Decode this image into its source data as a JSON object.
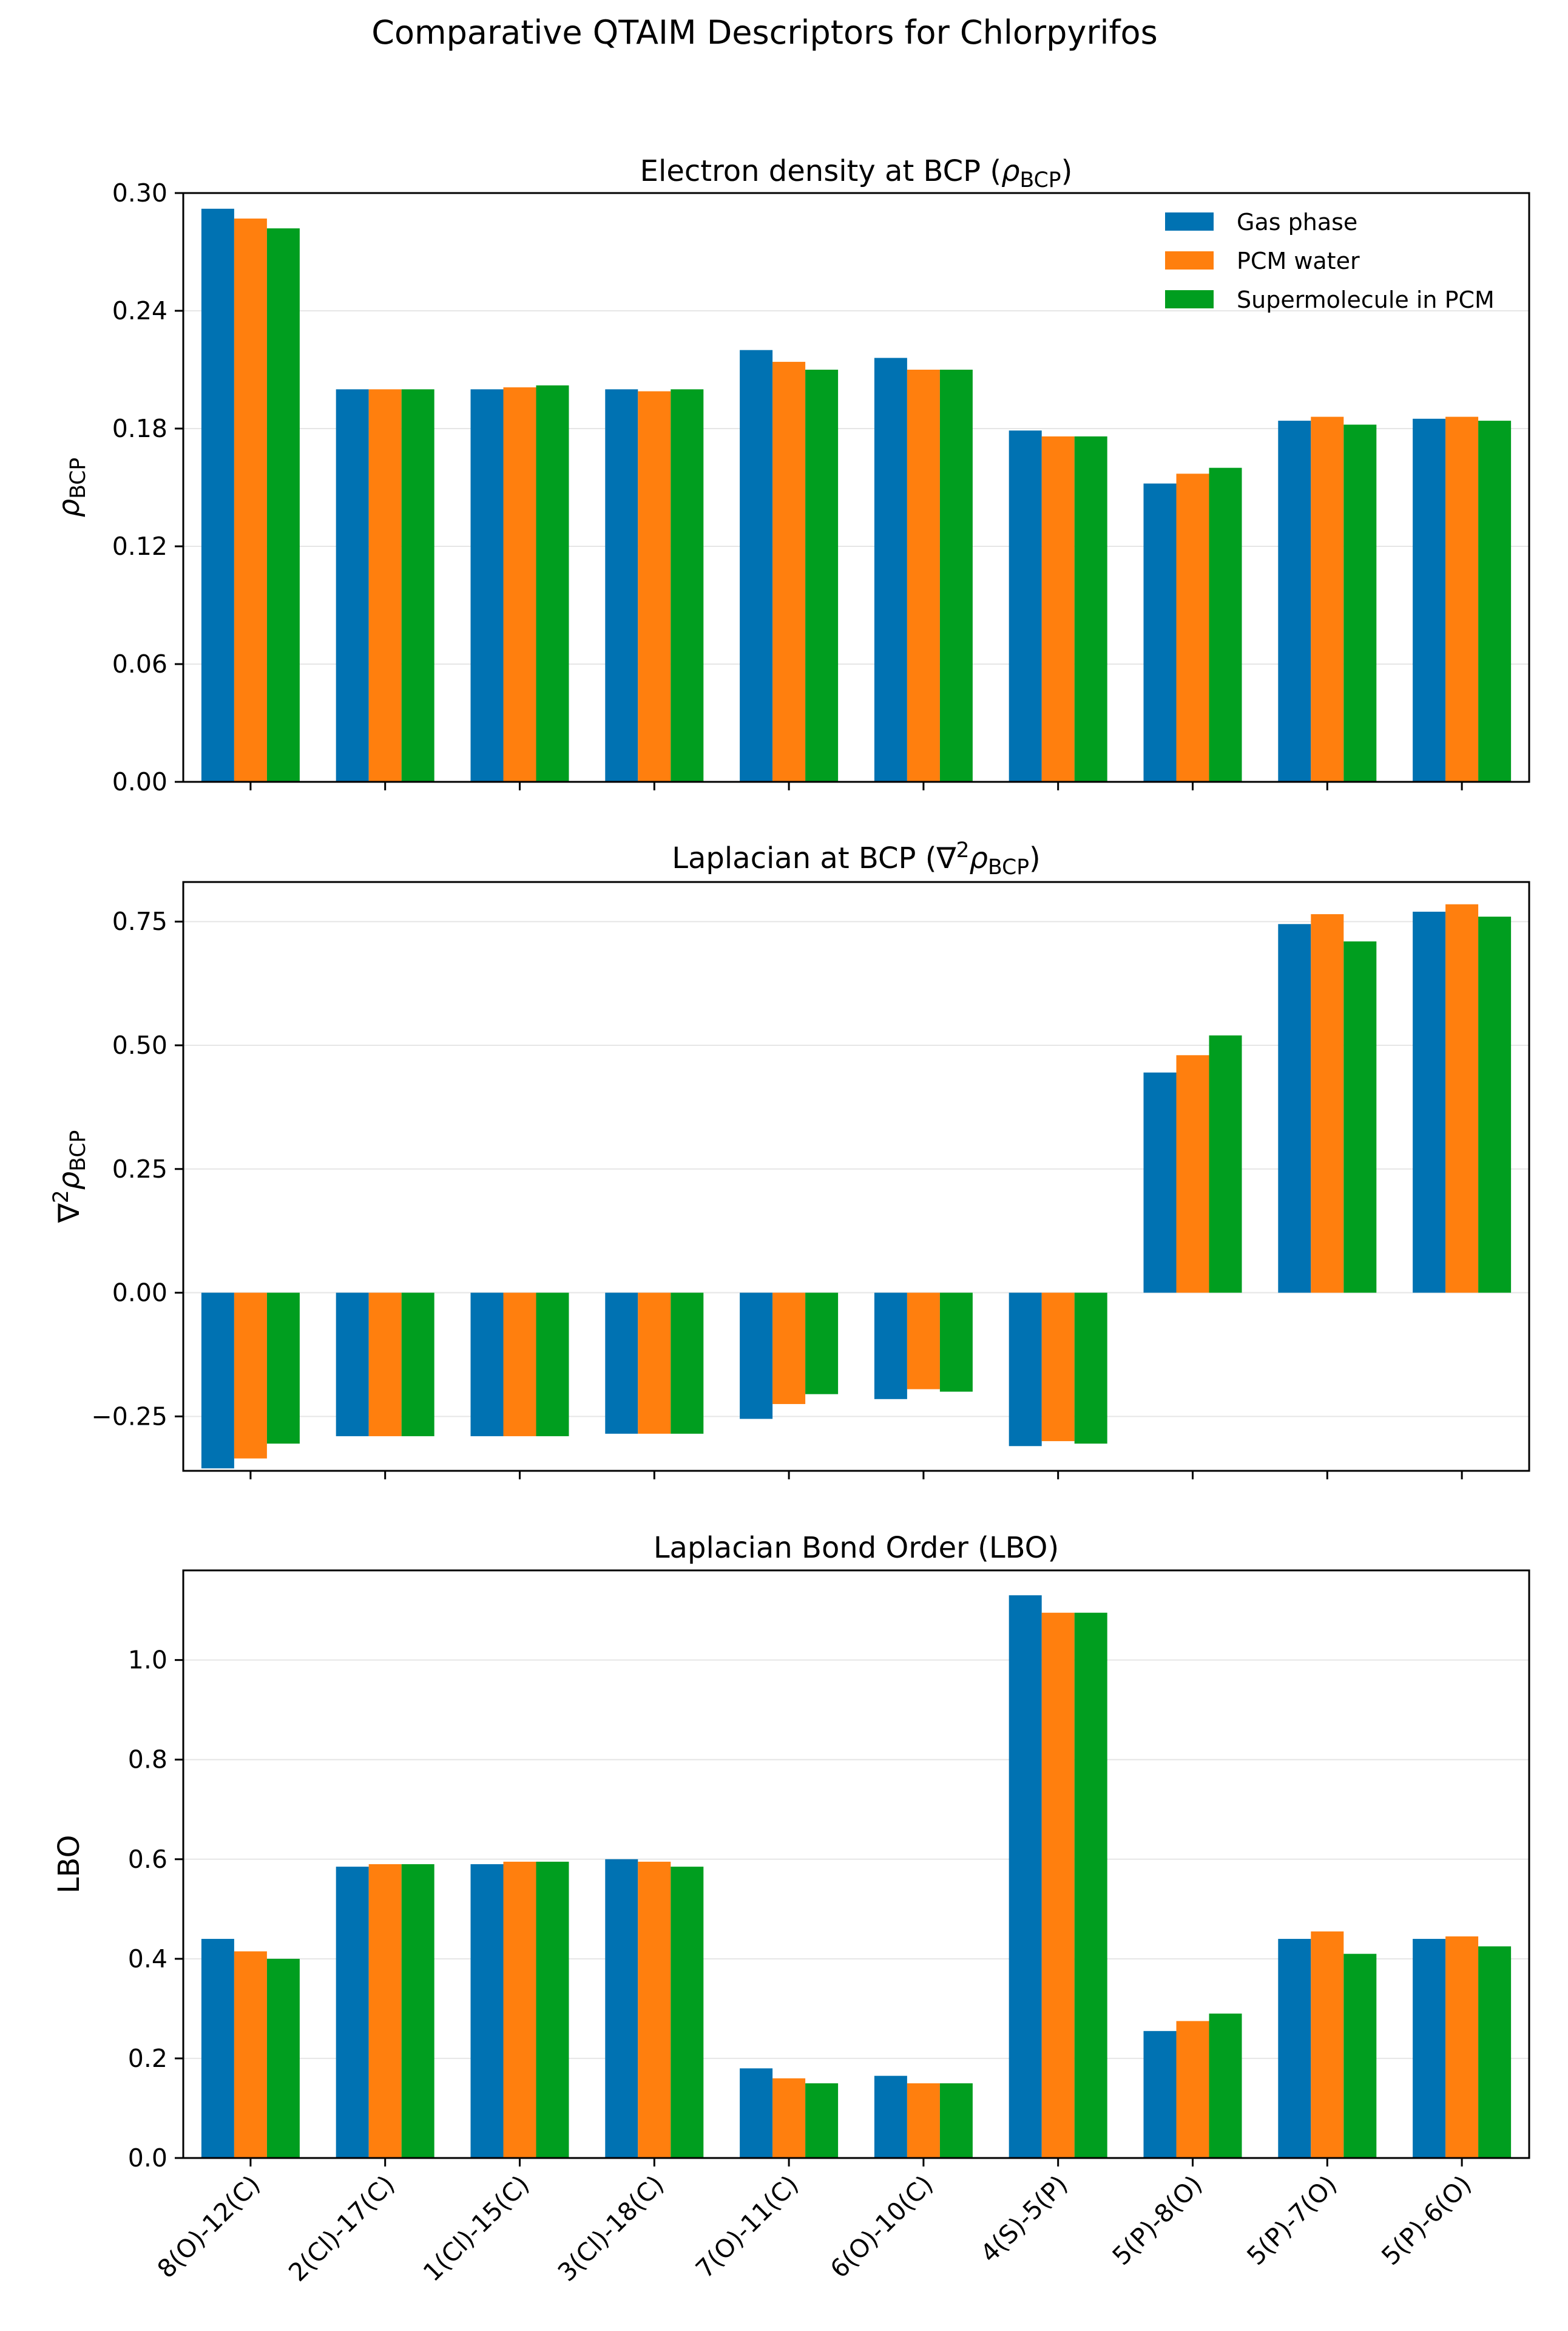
{
  "suptitle": "Comparative QTAIM Descriptors for Chlorpyrifos",
  "colors": {
    "Gas phase": "#0072B2",
    "PCM water": "#FF7F0E",
    "Supermolecule in PCM": "#009E1F"
  },
  "chart_data": [
    {
      "type": "bar",
      "title_prefix": "Electron density at BCP (",
      "title_symbol": "ρ",
      "title_sub": "BCP",
      "title_suffix": ")",
      "ylabel_pre": "",
      "ylabel_symbol": "ρ",
      "ylabel_sub": "BCP",
      "ylim": [
        0.0,
        0.3
      ],
      "yticks": [
        0.0,
        0.06,
        0.12,
        0.18,
        0.24,
        0.3
      ],
      "ytick_labels": [
        "0.00",
        "0.06",
        "0.12",
        "0.18",
        "0.24",
        "0.30"
      ],
      "grid": true,
      "legend": "top-right",
      "categories": [
        "8(O)-12(C)",
        "2(Cl)-17(C)",
        "1(Cl)-15(C)",
        "3(Cl)-18(C)",
        "7(O)-11(C)",
        "6(O)-10(C)",
        "4(S)-5(P)",
        "5(P)-8(O)",
        "5(P)-7(O)",
        "5(P)-6(O)"
      ],
      "series": [
        {
          "name": "Gas phase",
          "values": [
            0.292,
            0.2,
            0.2,
            0.2,
            0.22,
            0.216,
            0.179,
            0.152,
            0.184,
            0.185
          ]
        },
        {
          "name": "PCM water",
          "values": [
            0.287,
            0.2,
            0.201,
            0.199,
            0.214,
            0.21,
            0.176,
            0.157,
            0.186,
            0.186
          ]
        },
        {
          "name": "Supermolecule in PCM",
          "values": [
            0.282,
            0.2,
            0.202,
            0.2,
            0.21,
            0.21,
            0.176,
            0.16,
            0.182,
            0.184
          ]
        }
      ]
    },
    {
      "type": "bar",
      "title_prefix": "Laplacian at BCP (∇",
      "title_symbol": "ρ",
      "title_sup": "2",
      "title_sub": "BCP",
      "title_suffix": ")",
      "ylabel_pre": "∇",
      "ylabel_sup": "2",
      "ylabel_symbol": "ρ",
      "ylabel_sub": "BCP",
      "ylim": [
        -0.36,
        0.83
      ],
      "yticks": [
        -0.25,
        0.0,
        0.25,
        0.5,
        0.75
      ],
      "ytick_labels": [
        "−0.25",
        "0.00",
        "0.25",
        "0.50",
        "0.75"
      ],
      "grid": true,
      "categories": [
        "8(O)-12(C)",
        "2(Cl)-17(C)",
        "1(Cl)-15(C)",
        "3(Cl)-18(C)",
        "7(O)-11(C)",
        "6(O)-10(C)",
        "4(S)-5(P)",
        "5(P)-8(O)",
        "5(P)-7(O)",
        "5(P)-6(O)"
      ],
      "series": [
        {
          "name": "Gas phase",
          "values": [
            -0.355,
            -0.29,
            -0.29,
            -0.285,
            -0.255,
            -0.215,
            -0.31,
            0.445,
            0.745,
            0.77
          ]
        },
        {
          "name": "PCM water",
          "values": [
            -0.335,
            -0.29,
            -0.29,
            -0.285,
            -0.225,
            -0.195,
            -0.3,
            0.48,
            0.765,
            0.785
          ]
        },
        {
          "name": "Supermolecule in PCM",
          "values": [
            -0.305,
            -0.29,
            -0.29,
            -0.285,
            -0.205,
            -0.2,
            -0.305,
            0.52,
            0.71,
            0.76
          ]
        }
      ]
    },
    {
      "type": "bar",
      "title_prefix": "Laplacian Bond Order (LBO)",
      "title_symbol": "",
      "title_sub": "",
      "title_suffix": "",
      "ylabel_pre": "LBO",
      "ylabel_symbol": "",
      "ylabel_sub": "",
      "ylim": [
        0.0,
        1.18
      ],
      "yticks": [
        0.0,
        0.2,
        0.4,
        0.6,
        0.8,
        1.0
      ],
      "ytick_labels": [
        "0.0",
        "0.2",
        "0.4",
        "0.6",
        "0.8",
        "1.0"
      ],
      "grid": true,
      "categories": [
        "8(O)-12(C)",
        "2(Cl)-17(C)",
        "1(Cl)-15(C)",
        "3(Cl)-18(C)",
        "7(O)-11(C)",
        "6(O)-10(C)",
        "4(S)-5(P)",
        "5(P)-8(O)",
        "5(P)-7(O)",
        "5(P)-6(O)"
      ],
      "series": [
        {
          "name": "Gas phase",
          "values": [
            0.44,
            0.585,
            0.59,
            0.6,
            0.18,
            0.165,
            1.13,
            0.255,
            0.44,
            0.44
          ]
        },
        {
          "name": "PCM water",
          "values": [
            0.415,
            0.59,
            0.595,
            0.595,
            0.16,
            0.15,
            1.095,
            0.275,
            0.455,
            0.445
          ]
        },
        {
          "name": "Supermolecule in PCM",
          "values": [
            0.4,
            0.59,
            0.595,
            0.585,
            0.15,
            0.15,
            1.095,
            0.29,
            0.41,
            0.425
          ]
        }
      ]
    }
  ]
}
